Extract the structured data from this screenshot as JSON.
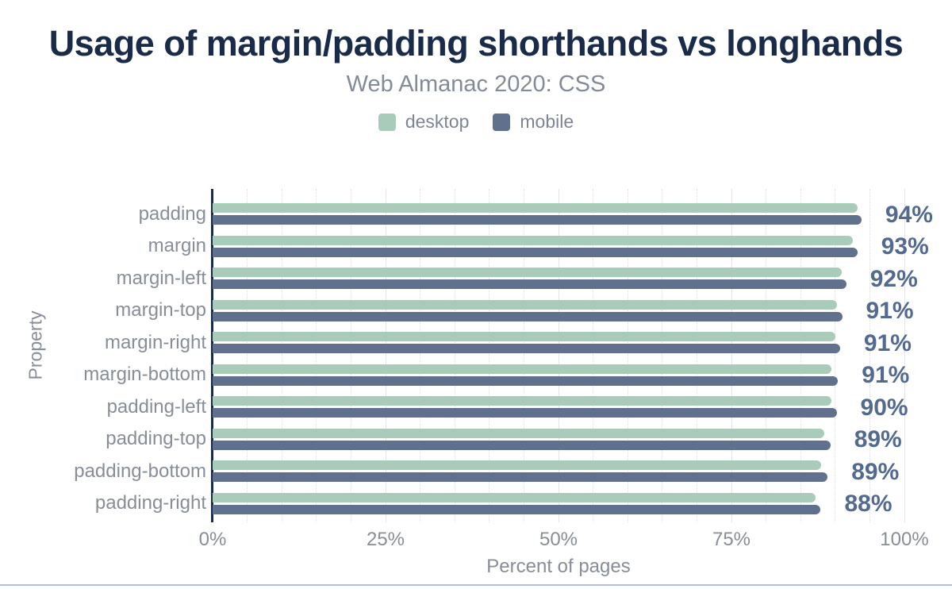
{
  "header": {
    "title": "Usage of margin/padding shorthands vs longhands",
    "subtitle": "Web Almanac 2020: CSS"
  },
  "chart_data": {
    "type": "bar",
    "orientation": "horizontal",
    "title": "Usage of margin/padding shorthands vs longhands",
    "subtitle": "Web Almanac 2020: CSS",
    "xlabel": "Percent of pages",
    "ylabel": "Property",
    "xlim": [
      0,
      100
    ],
    "x_ticks": [
      {
        "value": 0,
        "label": "0%"
      },
      {
        "value": 25,
        "label": "25%"
      },
      {
        "value": 50,
        "label": "50%"
      },
      {
        "value": 75,
        "label": "75%"
      },
      {
        "value": 100,
        "label": "100%"
      }
    ],
    "grid": {
      "minor_step": 5,
      "major_step": 25,
      "minor_style": "dotted",
      "major_style": "solid"
    },
    "legend_position": "top",
    "categories": [
      "padding",
      "margin",
      "margin-left",
      "margin-top",
      "margin-right",
      "margin-bottom",
      "padding-left",
      "padding-top",
      "padding-bottom",
      "padding-right"
    ],
    "series": [
      {
        "name": "desktop",
        "color": "#a8ccb9",
        "values": [
          93.2,
          92.6,
          90.9,
          90.3,
          90.0,
          89.5,
          89.4,
          88.4,
          88.0,
          87.1
        ]
      },
      {
        "name": "mobile",
        "color": "#5f718c",
        "values": [
          93.8,
          93.2,
          91.6,
          91.0,
          90.7,
          90.4,
          90.2,
          89.3,
          88.9,
          87.9
        ]
      }
    ],
    "value_labels": [
      "94%",
      "93%",
      "92%",
      "91%",
      "91%",
      "91%",
      "90%",
      "89%",
      "89%",
      "88%"
    ]
  },
  "colors": {
    "title": "#1a2b49",
    "axis_line": "#1a2b49",
    "desktop": "#a8ccb9",
    "mobile": "#5f718c",
    "value_label": "#536a90",
    "muted_text": "#878d99",
    "grid_minor": "#d9dde4",
    "grid_major": "#e2e5ea",
    "bottom_rule": "#b3c2d2"
  }
}
